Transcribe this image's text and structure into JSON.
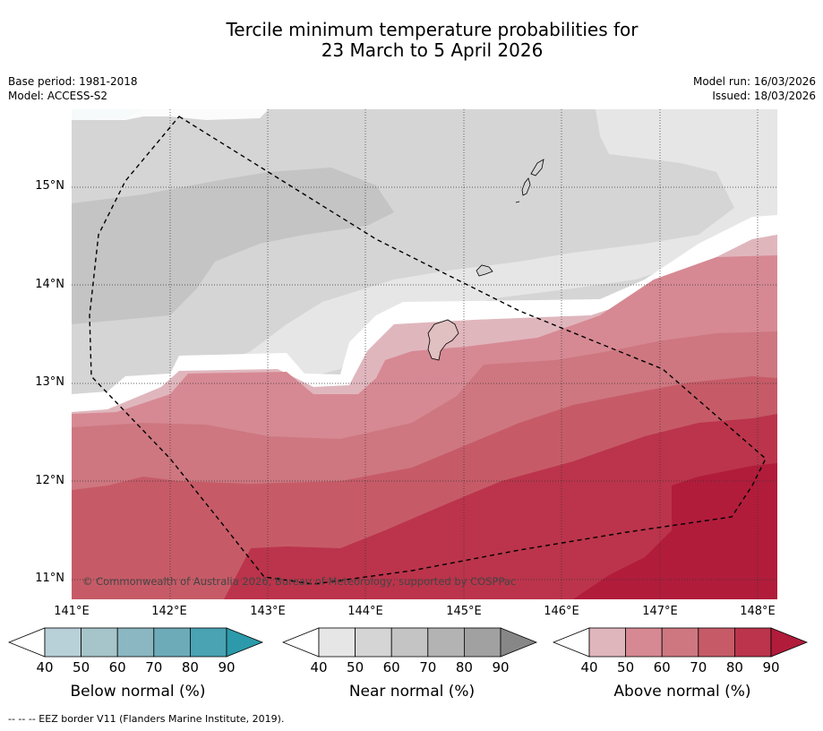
{
  "title_line1": "Tercile minimum temperature probabilities for",
  "title_line2": "23 March to 5 April 2026",
  "meta": {
    "base_period": "Base period: 1981-2018",
    "model": "Model: ACCESS-S2",
    "model_run": "Model run: 16/03/2026",
    "issued": "Issued: 18/03/2026"
  },
  "map": {
    "copyright": "© Commonwealth of Australia 2026, Bureau of Meteorology, supported by COSPPac",
    "lat_labels": [
      "15°N",
      "14°N",
      "13°N",
      "12°N",
      "11°N"
    ],
    "lon_labels": [
      "141°E",
      "142°E",
      "143°E",
      "144°E",
      "145°E",
      "146°E",
      "147°E",
      "148°E"
    ]
  },
  "colorbars": [
    {
      "label": "Below normal (%)",
      "ticks": [
        "40",
        "50",
        "60",
        "70",
        "80",
        "90"
      ],
      "colors": [
        "#b8d0d8",
        "#a5c5ca",
        "#8ab7c1",
        "#6dabb9",
        "#49a3b3"
      ],
      "end_color": "#2c9aaa"
    },
    {
      "label": "Near normal (%)",
      "ticks": [
        "40",
        "50",
        "60",
        "70",
        "80",
        "90"
      ],
      "colors": [
        "#e6e6e6",
        "#d5d5d5",
        "#c4c4c4",
        "#b3b3b3",
        "#a1a1a1"
      ],
      "end_color": "#878787"
    },
    {
      "label": "Above normal (%)",
      "ticks": [
        "40",
        "50",
        "60",
        "70",
        "80",
        "90"
      ],
      "colors": [
        "#e0b6bd",
        "#d68993",
        "#ce7780",
        "#c65b67",
        "#bb344b"
      ],
      "end_color": "#b11c3b"
    }
  ],
  "footnote": "--  --  -- EEZ border V11 (Flanders Marine Institute, 2019)."
}
